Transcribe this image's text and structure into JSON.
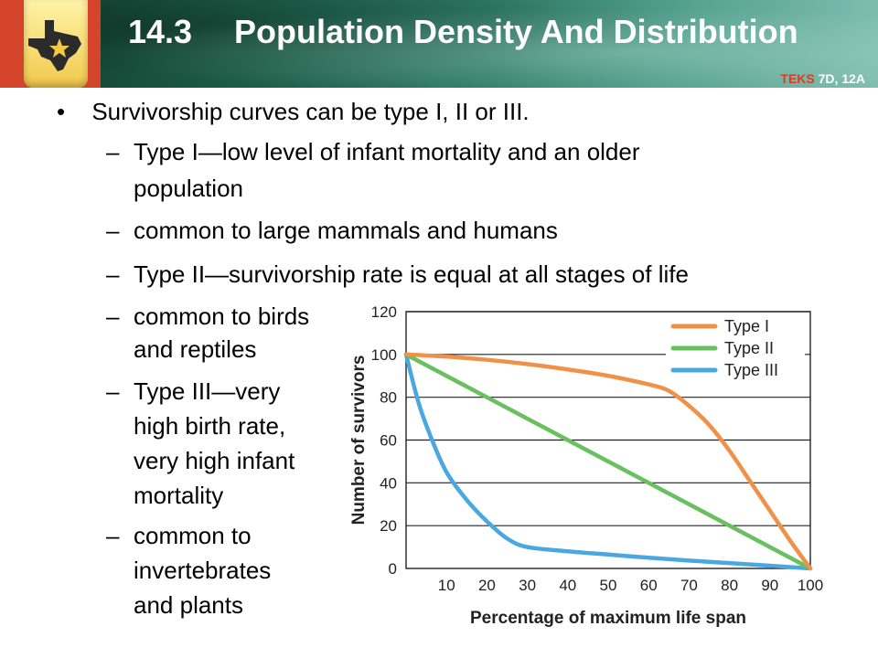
{
  "header": {
    "section_number": "14.3",
    "title": "Population Density And Distribution",
    "teks_label": "TEKS",
    "teks_value": "7D, 12A",
    "logo_icon": "texas-star-icon",
    "colors": {
      "logo_bg": "#d4442a",
      "teks_red": "#e23a1f"
    }
  },
  "content": {
    "bullet": "Survivorship curves can be type I, II or III.",
    "items": [
      [
        "Type I—low level of infant mortality and an older",
        "population"
      ],
      [
        "common to large mammals and humans"
      ],
      [
        "Type II—survivorship rate is equal at all stages of life"
      ],
      [
        "common to birds",
        "and reptiles"
      ],
      [
        "Type III—very",
        "high birth rate,",
        "very high infant",
        "mortality"
      ],
      [
        "common to",
        "invertebrates",
        "and plants"
      ]
    ]
  },
  "chart_data": {
    "type": "line",
    "title": "",
    "xlabel": "Percentage of maximum life span",
    "ylabel": "Number of survivors",
    "xlim": [
      0,
      100
    ],
    "ylim": [
      0,
      120
    ],
    "x_ticks": [
      "10",
      "20",
      "30",
      "40",
      "50",
      "60",
      "70",
      "80",
      "90",
      "100"
    ],
    "y_ticks": [
      "0",
      "20",
      "40",
      "60",
      "80",
      "100",
      "120"
    ],
    "grid": "horizontal",
    "legend_position": "top-right",
    "series": [
      {
        "name": "Type I",
        "color": "#f0914a",
        "x": [
          0,
          10,
          20,
          30,
          40,
          50,
          60,
          65,
          70,
          75,
          80,
          85,
          90,
          95,
          100
        ],
        "y": [
          100,
          99,
          97.5,
          95.5,
          93,
          90,
          86,
          83,
          76,
          67,
          55,
          41,
          27,
          13,
          0
        ]
      },
      {
        "name": "Type II",
        "color": "#6abf5e",
        "x": [
          0,
          100
        ],
        "y": [
          100,
          0
        ]
      },
      {
        "name": "Type III",
        "color": "#4aa8e0",
        "x": [
          0,
          3,
          6,
          10,
          15,
          20,
          25,
          30,
          40,
          50,
          60,
          70,
          80,
          90,
          100
        ],
        "y": [
          100,
          78,
          62,
          45,
          32,
          22,
          14,
          10,
          8,
          6.5,
          5,
          3.7,
          2.5,
          1.3,
          0
        ]
      }
    ]
  }
}
